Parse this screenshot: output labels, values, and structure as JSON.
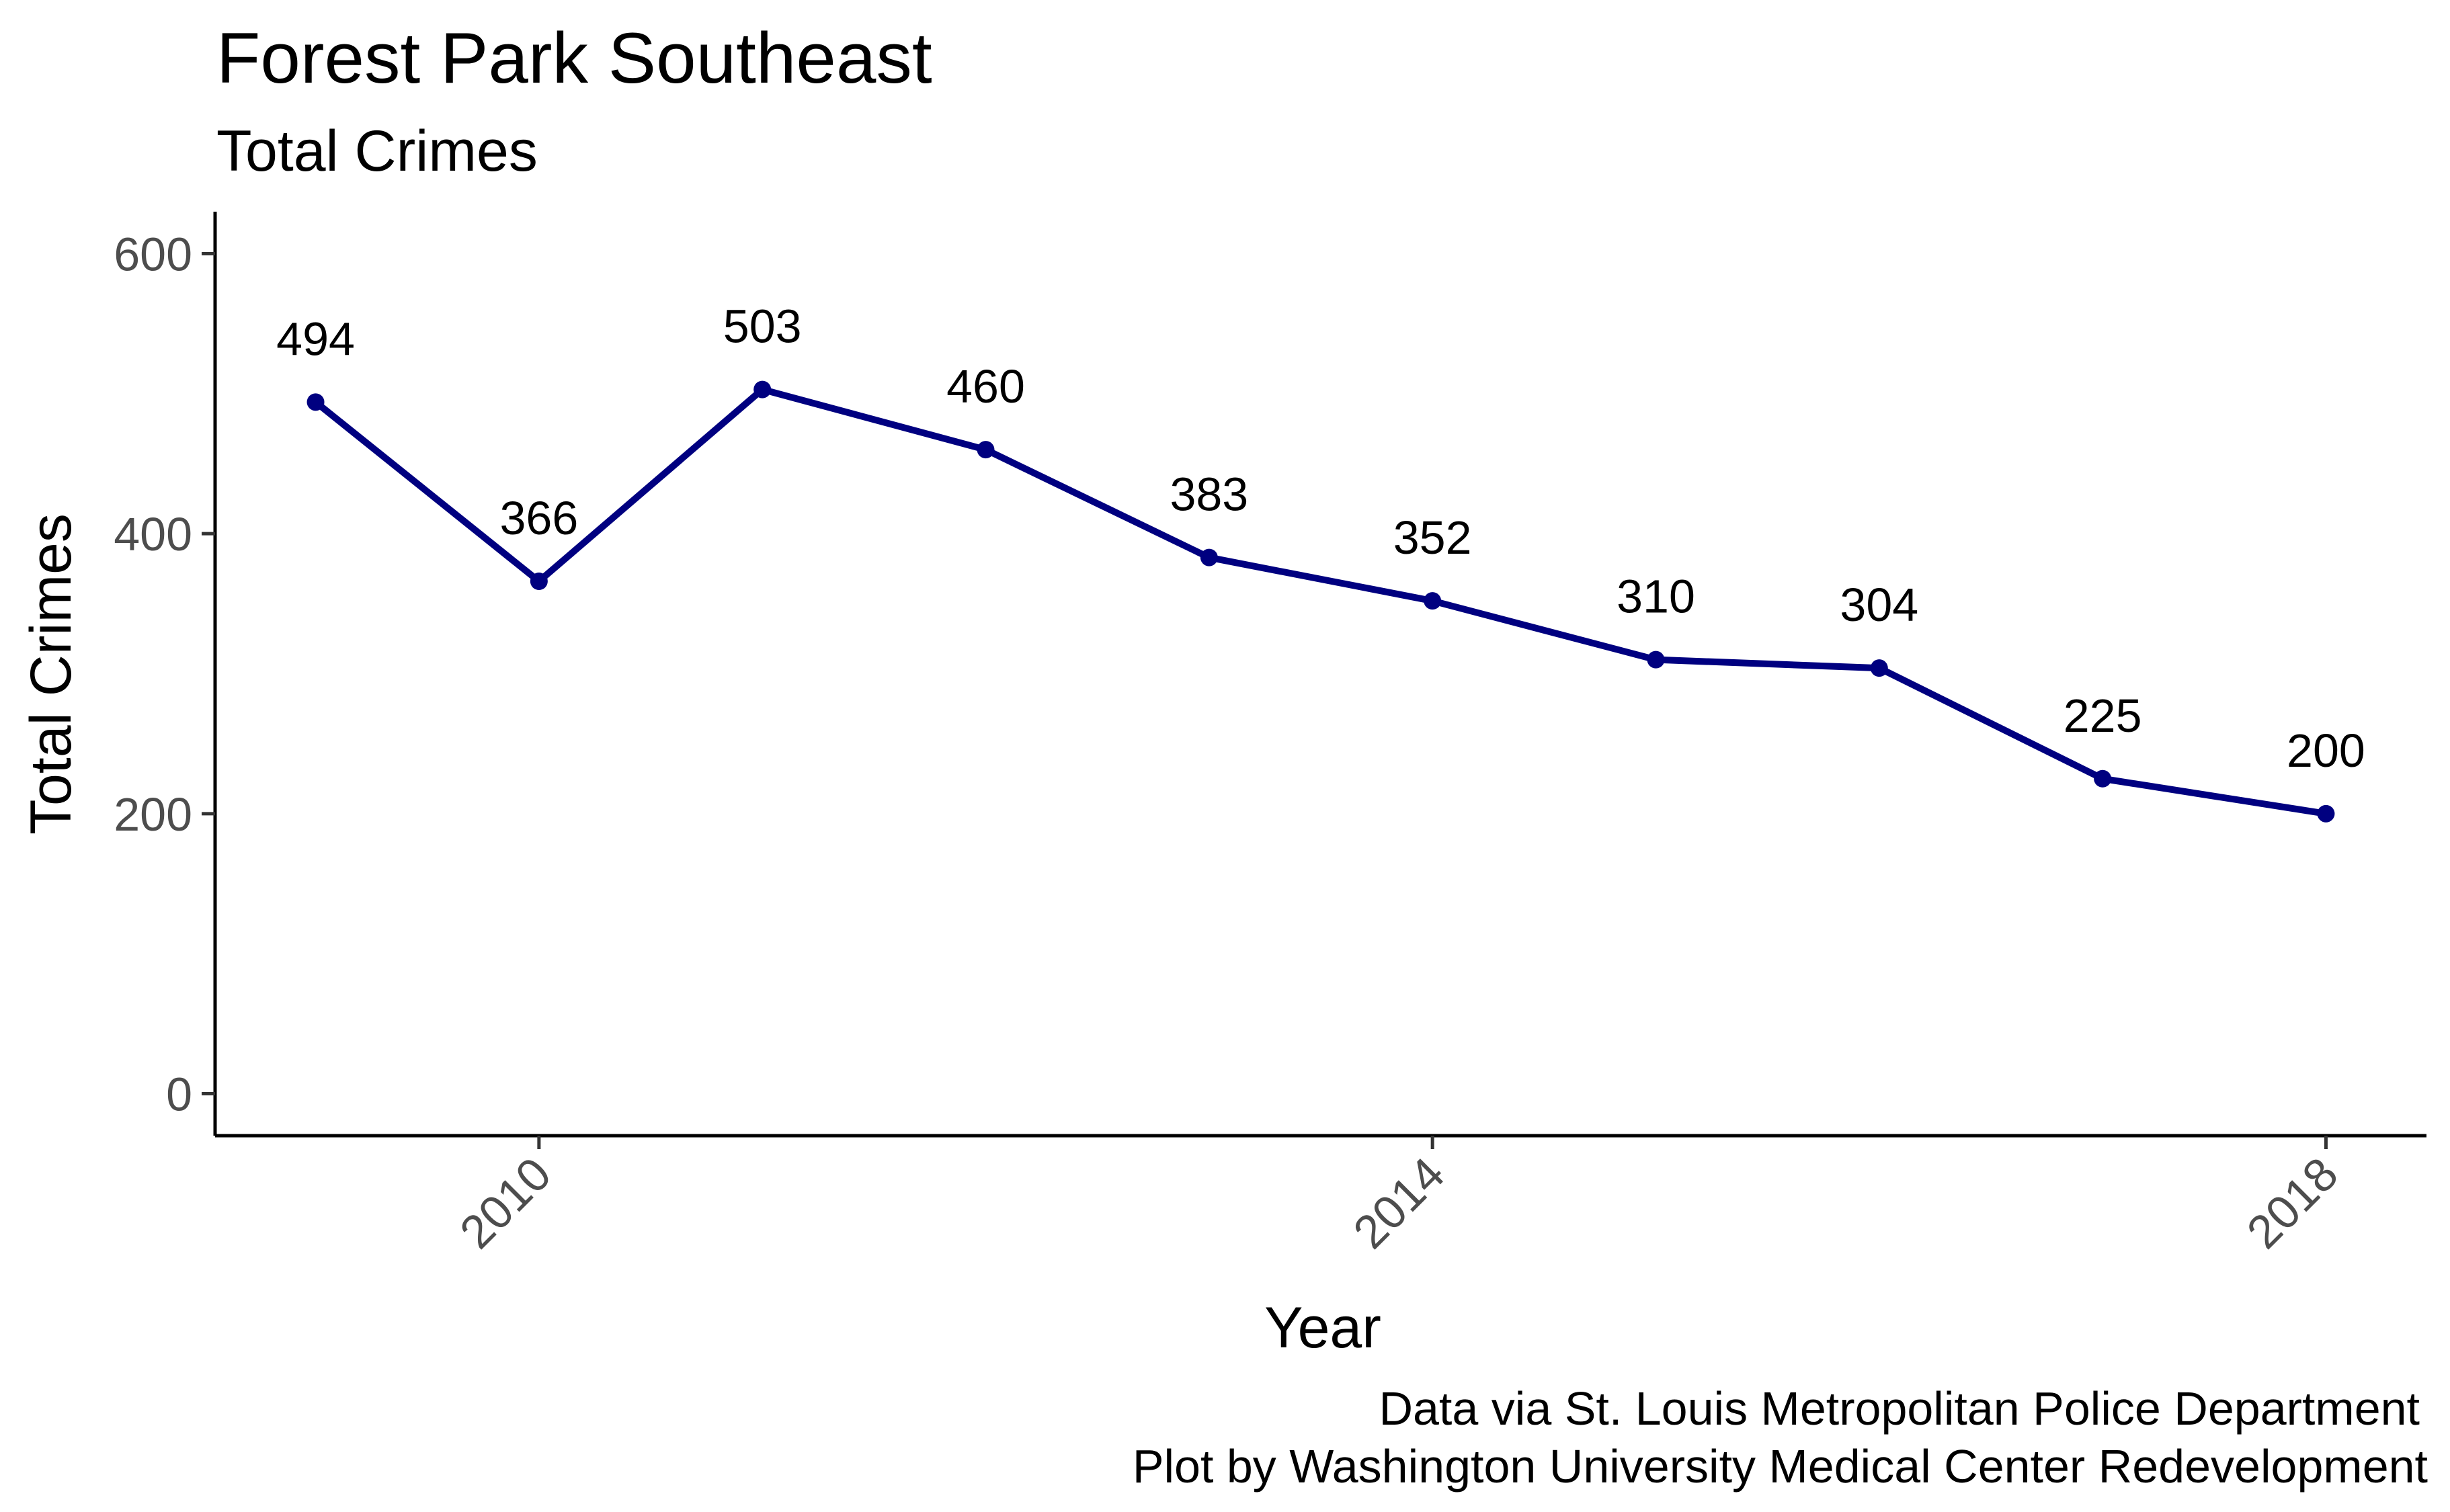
{
  "chart_data": {
    "type": "line",
    "title": "Forest Park Southeast",
    "subtitle": "Total Crimes",
    "xlabel": "Year",
    "ylabel": "Total Crimes",
    "x": [
      2009,
      2010,
      2011,
      2012,
      2013,
      2014,
      2015,
      2016,
      2017,
      2018
    ],
    "series": [
      {
        "values": [
          494,
          366,
          503,
          460,
          383,
          352,
          310,
          304,
          225,
          200
        ]
      }
    ],
    "data_labels": [
      "494",
      "366",
      "503",
      "460",
      "383",
      "352",
      "310",
      "304",
      "225",
      "200"
    ],
    "xlim": [
      2008.55,
      2018.45
    ],
    "ylim": [
      -30,
      630
    ],
    "x_ticks": [
      2010,
      2014,
      2018
    ],
    "x_tick_labels": [
      "2010",
      "2014",
      "2018"
    ],
    "y_ticks": [
      0,
      200,
      400,
      600
    ],
    "y_tick_labels": [
      "0",
      "200",
      "400",
      "600"
    ],
    "grid": false,
    "legend": "none",
    "line_color": "#000080",
    "caption_lines": [
      "Data via St. Louis Metropolitan Police Department",
      "Plot by Washington University Medical Center Redevelopment"
    ]
  }
}
